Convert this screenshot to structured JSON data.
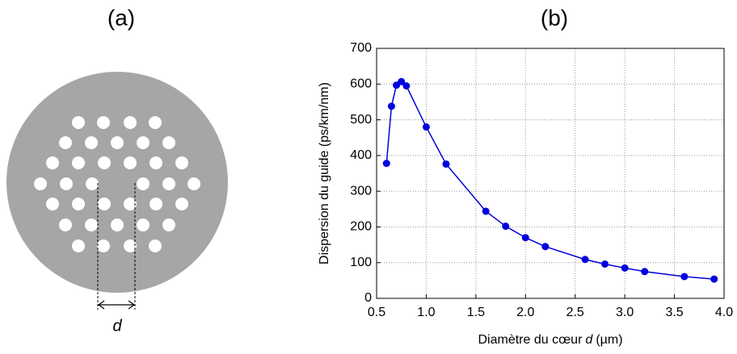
{
  "panel_a": {
    "label": "(a)",
    "d_label": "d"
  },
  "chart_data": {
    "type": "line",
    "panel_label": "(b)",
    "xlabel": {
      "before": "Diamètre du cœur",
      "var": "d",
      "after": "(µm)"
    },
    "ylabel": "Dispersion du guide (ps/km/nm)",
    "x": [
      0.6,
      0.65,
      0.7,
      0.75,
      0.8,
      1.0,
      1.2,
      1.6,
      1.8,
      2.0,
      2.2,
      2.6,
      2.8,
      3.0,
      3.2,
      3.6,
      3.9
    ],
    "series": [
      {
        "color": "#0000dd",
        "values": [
          378,
          538,
          597,
          607,
          595,
          480,
          376,
          244,
          202,
          170,
          145,
          109,
          96,
          85,
          75,
          61,
          54
        ]
      }
    ],
    "xlim": [
      0.5,
      4.0
    ],
    "xticks": [
      0.5,
      {
        "value": 1,
        "label": "1.0"
      },
      1.5,
      {
        "value": 2,
        "label": "2.0"
      },
      2.5,
      {
        "value": 3,
        "label": "3.0"
      },
      3.5,
      {
        "value": 4,
        "label": "4.0"
      }
    ],
    "ylim": [
      0,
      700
    ],
    "yticks": [
      0,
      100,
      200,
      300,
      400,
      500,
      600,
      700
    ],
    "grid": true
  }
}
